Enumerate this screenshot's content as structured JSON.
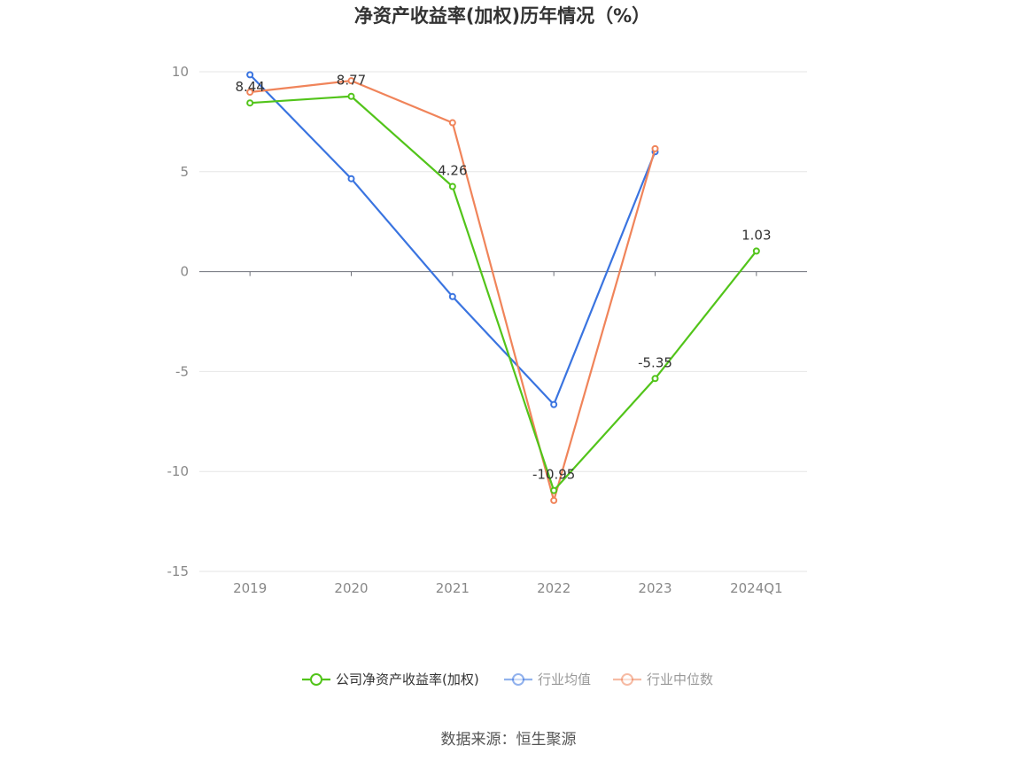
{
  "chart_data": {
    "type": "line",
    "title": "净资产收益率(加权)历年情况（%）",
    "categories": [
      "2019",
      "2020",
      "2021",
      "2022",
      "2023",
      "2024Q1"
    ],
    "ylim": [
      -15,
      10
    ],
    "yticks": [
      10,
      5,
      0,
      -5,
      -10,
      -15
    ],
    "grid": true,
    "legend_position": "bottom",
    "series": [
      {
        "name": "公司净资产收益率(加权)",
        "color": "#52c41a",
        "values": [
          8.44,
          8.77,
          4.26,
          -10.95,
          -5.35,
          1.03
        ],
        "labels": [
          "8.44",
          "8.77",
          "4.26",
          "-10.95",
          "-5.35",
          "1.03"
        ]
      },
      {
        "name": "行业均值",
        "color": "#3a74e0",
        "values": [
          9.85,
          4.65,
          -1.25,
          -6.65,
          6.0,
          null
        ]
      },
      {
        "name": "行业中位数",
        "color": "#f0845a",
        "values": [
          8.98,
          9.55,
          7.45,
          -11.45,
          6.15,
          null
        ]
      }
    ],
    "source": "数据来源：恒生聚源"
  }
}
